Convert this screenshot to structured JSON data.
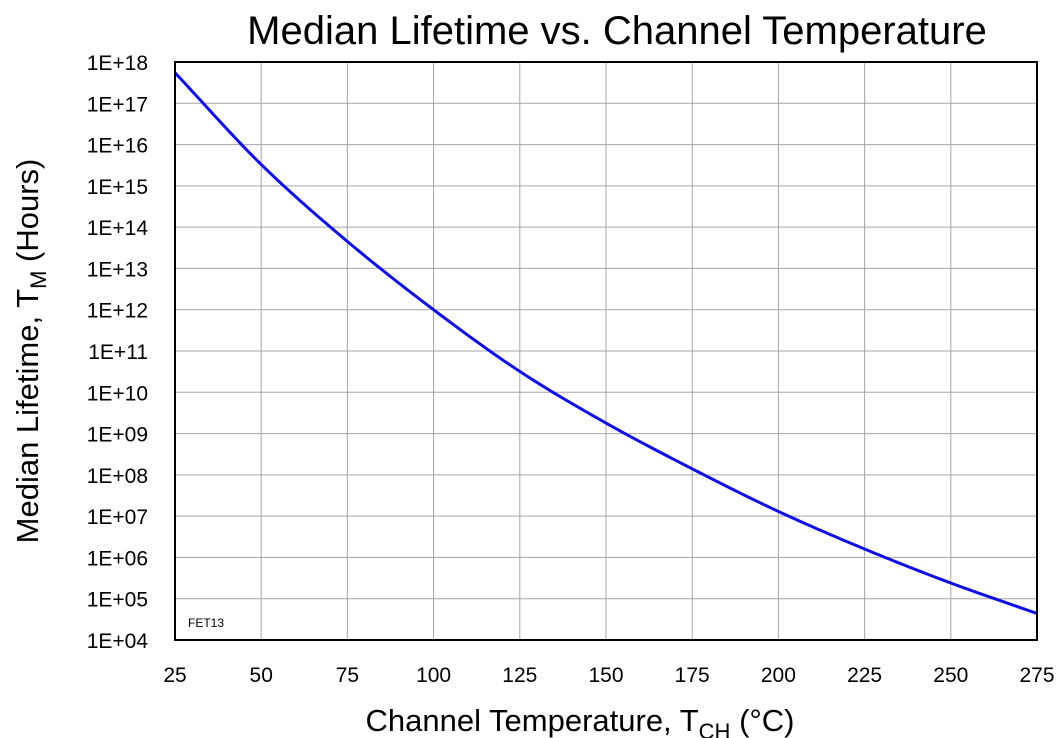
{
  "chart_data": {
    "type": "line",
    "title": "Median Lifetime vs. Channel Temperature",
    "xlabel": {
      "main": "Channel Temperature, T",
      "sub": "CH",
      "tail": " (°C)"
    },
    "ylabel": {
      "main": "Median Lifetime,  T",
      "sub": "M",
      "tail": " (Hours)"
    },
    "x_ticks": [
      "25",
      "50",
      "75",
      "100",
      "125",
      "150",
      "175",
      "200",
      "225",
      "250",
      "275"
    ],
    "y_ticks": [
      "1E+04",
      "1E+05",
      "1E+06",
      "1E+07",
      "1E+08",
      "1E+09",
      "1E+10",
      "1E+11",
      "1E+12",
      "1E+13",
      "1E+14",
      "1E+15",
      "1E+16",
      "1E+17",
      "1E+18"
    ],
    "xlim": [
      25,
      275
    ],
    "ylim": [
      10000,
      1e+18
    ],
    "y_scale": "log",
    "grid": true,
    "annotation": "FET13",
    "line_color": "#1010e0",
    "series": [
      {
        "x": [
          25,
          50,
          75,
          100,
          125,
          150,
          175,
          200,
          225,
          250,
          275
        ],
        "y": [
          5.5e+17,
          3300000000000000.0,
          45000000000000.0,
          1000000000000.0,
          32000000000.0,
          1800000000.0,
          140000000.0,
          13000000.0,
          1600000.0,
          240000.0,
          44000.0
        ]
      }
    ]
  }
}
